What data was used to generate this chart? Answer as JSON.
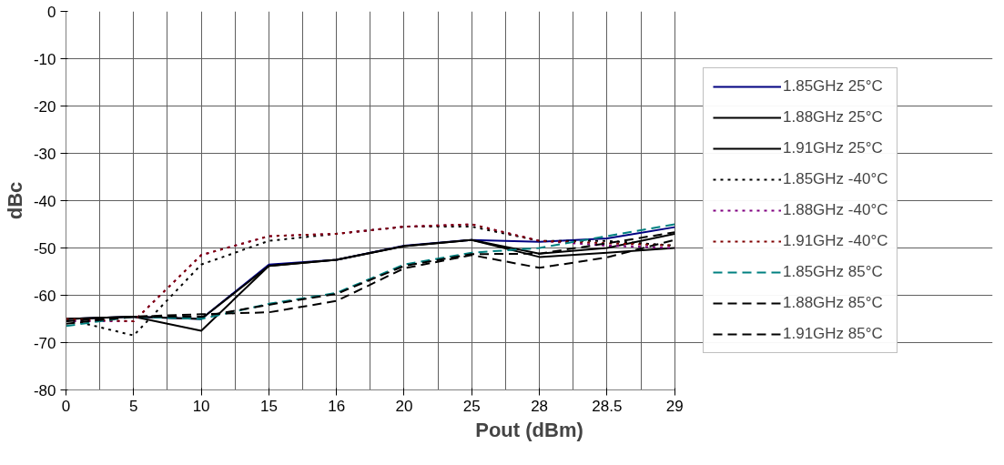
{
  "chart_data": {
    "type": "line",
    "xlabel": "Pout (dBm)",
    "ylabel": "dBc",
    "categories": [
      "0",
      "5",
      "10",
      "15",
      "16",
      "20",
      "25",
      "28",
      "28.5",
      "29"
    ],
    "ylim": [
      -80,
      0
    ],
    "yticks": [
      0,
      -10,
      -20,
      -30,
      -40,
      -50,
      -60,
      -70,
      -80
    ],
    "grid": true,
    "legend": "right",
    "marker": "none",
    "series": [
      {
        "name": "1.85GHz 25°C",
        "color": "#000080",
        "line_style": "solid",
        "values": [
          -65,
          -64.5,
          -65,
          -53.5,
          -52.5,
          -49.5,
          -48.3,
          -48.7,
          -48,
          -45.6
        ]
      },
      {
        "name": "1.88GHz 25°C",
        "color": "#000000",
        "line_style": "solid",
        "values": [
          -65,
          -64.5,
          -65,
          -53.8,
          -52.5,
          -49.6,
          -48.3,
          -51.2,
          -50,
          -47
        ]
      },
      {
        "name": "1.91GHz 25°C",
        "color": "#000000",
        "line_style": "solid",
        "values": [
          -65,
          -64.5,
          -67.5,
          -53.8,
          -52.5,
          -49.6,
          -48.3,
          -51.9,
          -51,
          -50
        ]
      },
      {
        "name": "1.85GHz -40°C",
        "color": "#000000",
        "line_style": "dotted",
        "values": [
          -65,
          -68.5,
          -53.5,
          -48.5,
          -47,
          -45.5,
          -45.5,
          -48.5,
          -48.5,
          -49.5
        ]
      },
      {
        "name": "1.88GHz -40°C",
        "color": "#800080",
        "line_style": "dotted",
        "values": [
          -65.5,
          -65.5,
          -51.5,
          -47.5,
          -47,
          -45.5,
          -45,
          -48.5,
          -49.5,
          -50
        ]
      },
      {
        "name": "1.91GHz -40°C",
        "color": "#800000",
        "line_style": "dotted",
        "values": [
          -65,
          -65.5,
          -51.5,
          -47.5,
          -47,
          -45.5,
          -45,
          -48.5,
          -49,
          -49.5
        ]
      },
      {
        "name": "1.85GHz 85°C",
        "color": "#008080",
        "line_style": "dashed",
        "values": [
          -66.5,
          -64.5,
          -65,
          -61.8,
          -59.5,
          -53.5,
          -51,
          -50,
          -47.5,
          -45
        ]
      },
      {
        "name": "1.88GHz 85°C",
        "color": "#000000",
        "line_style": "dashed",
        "values": [
          -65.5,
          -64.5,
          -64.5,
          -62,
          -59.7,
          -53.8,
          -51.3,
          -51.2,
          -49,
          -46.7
        ]
      },
      {
        "name": "1.91GHz 85°C",
        "color": "#000000",
        "line_style": "dashed",
        "values": [
          -66,
          -64.5,
          -64,
          -63.6,
          -61.2,
          -54.3,
          -51.5,
          -54.2,
          -52,
          -48.3
        ]
      }
    ]
  }
}
